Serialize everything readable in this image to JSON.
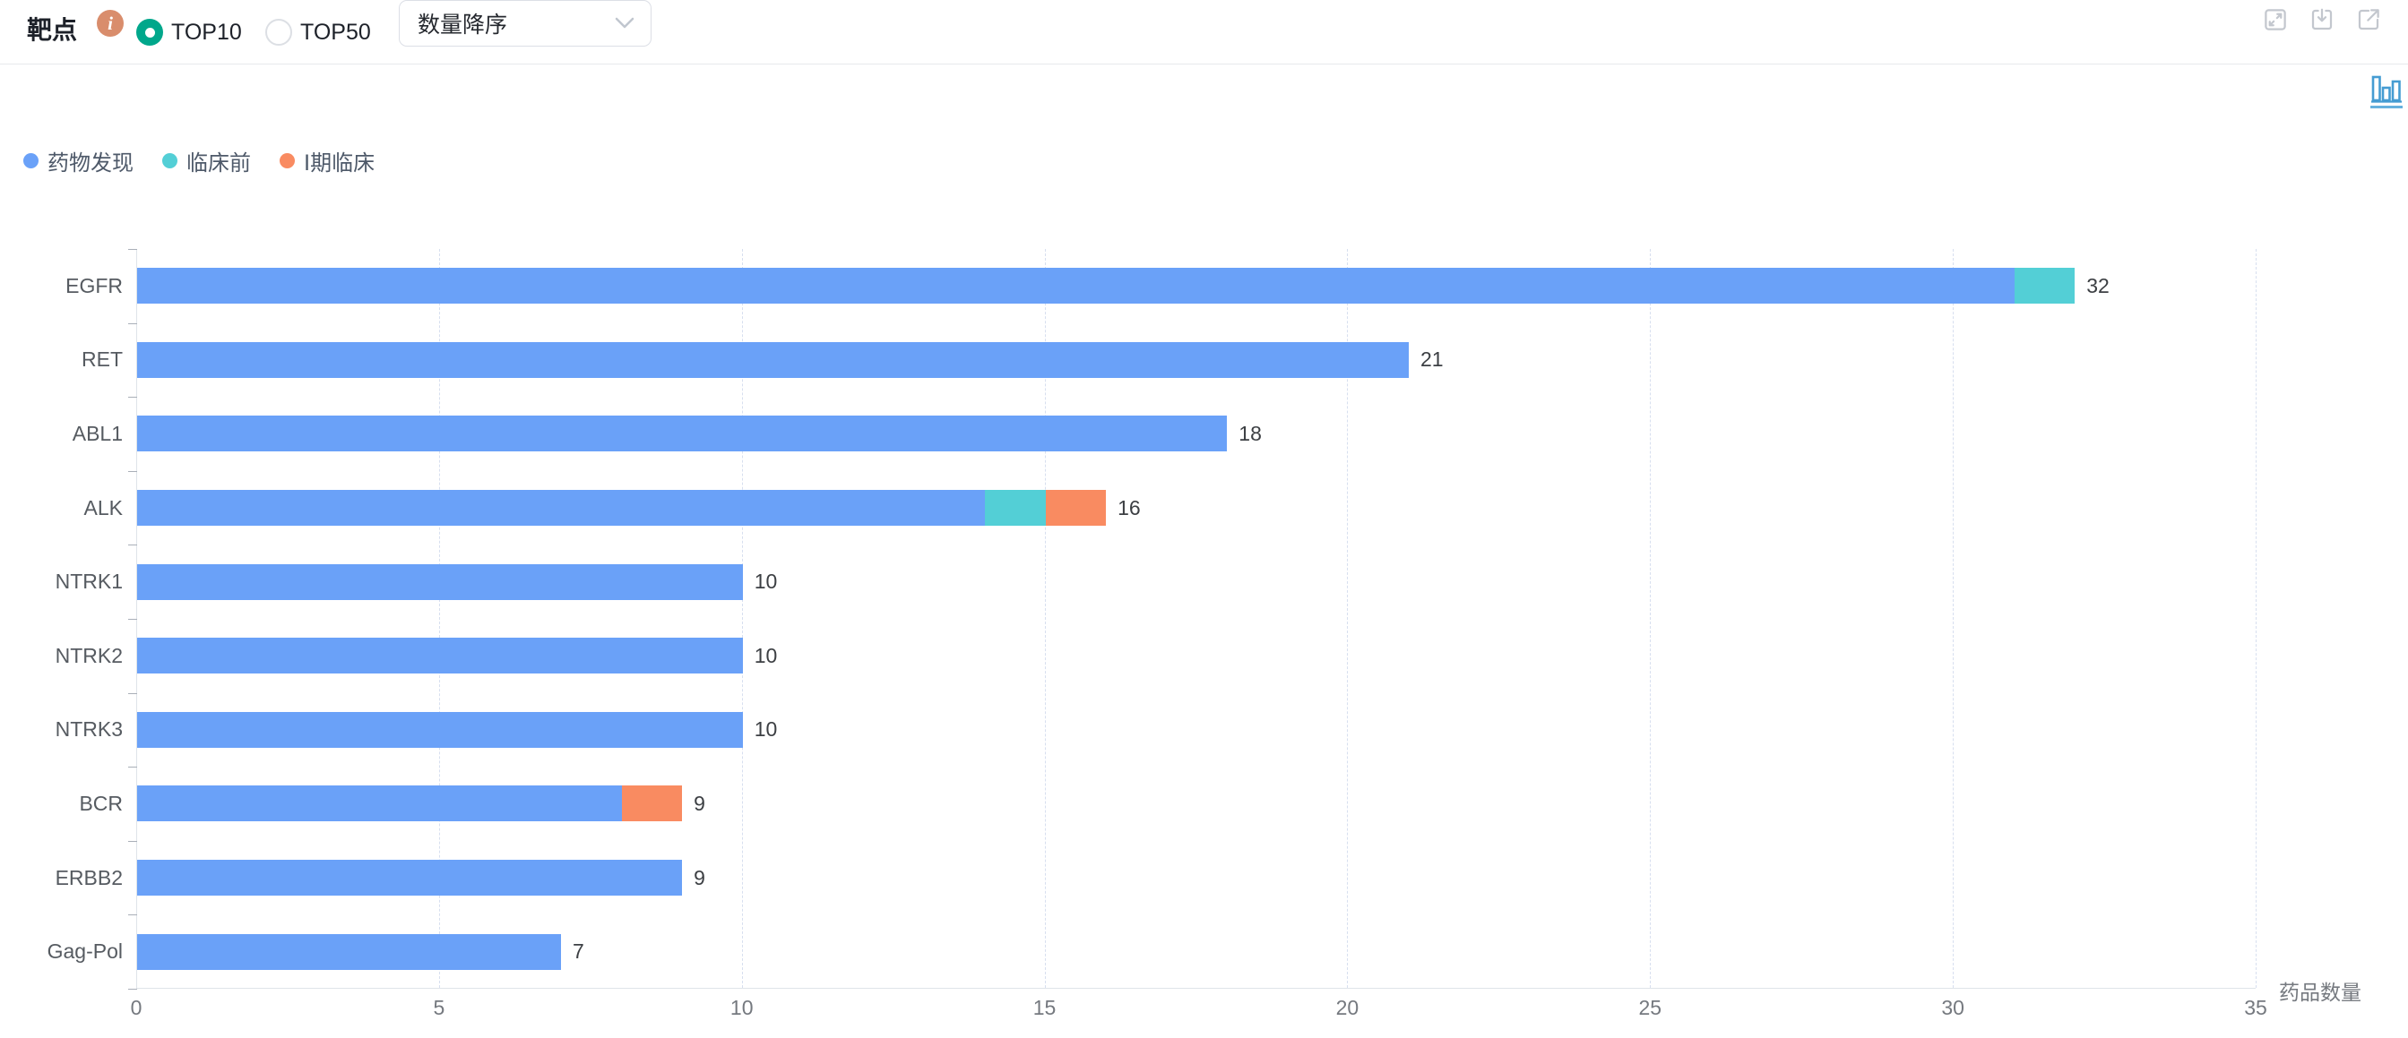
{
  "header": {
    "title": "靶点",
    "info_glyph": "i",
    "radio_options": [
      {
        "label": "TOP10",
        "selected": true
      },
      {
        "label": "TOP50",
        "selected": false
      }
    ],
    "sort_select": {
      "value": "数量降序"
    },
    "action_icons": [
      "expand-icon",
      "download-icon",
      "external-link-icon"
    ]
  },
  "toolbar": {
    "chart_type_icon": "bar-chart-icon"
  },
  "colors": {
    "radio_selected": "#00A78B",
    "info_badge": "#D98D6C",
    "series_blue": "#6AA1F8",
    "series_teal": "#53CFD6",
    "series_orange": "#F98B61",
    "grid_line": "#D7DFEF",
    "axis_line": "#DFE4E9",
    "chart_type_icon_blue": "#459CD2"
  },
  "chart_data": {
    "type": "bar",
    "orientation": "horizontal",
    "title": "",
    "categories": [
      "EGFR",
      "RET",
      "ABL1",
      "ALK",
      "NTRK1",
      "NTRK2",
      "NTRK3",
      "BCR",
      "ERBB2",
      "Gag-Pol"
    ],
    "series": [
      {
        "name": "药物发现",
        "color": "#6AA1F8",
        "values": [
          31,
          21,
          18,
          14,
          10,
          10,
          10,
          8,
          9,
          7
        ]
      },
      {
        "name": "临床前",
        "color": "#53CFD6",
        "values": [
          1,
          0,
          0,
          1,
          0,
          0,
          0,
          0,
          0,
          0
        ]
      },
      {
        "name": "Ⅰ期临床",
        "color": "#F98B61",
        "values": [
          0,
          0,
          0,
          1,
          0,
          0,
          0,
          1,
          0,
          0
        ]
      }
    ],
    "totals": [
      32,
      21,
      18,
      16,
      10,
      10,
      10,
      9,
      9,
      7
    ],
    "xlabel": "药品数量",
    "x_ticks": [
      0,
      5,
      10,
      15,
      20,
      25,
      30,
      35
    ],
    "xlim": [
      0,
      35
    ],
    "legend_position": "top-left",
    "grid": "vertical-dashed",
    "sort": "数量降序"
  }
}
